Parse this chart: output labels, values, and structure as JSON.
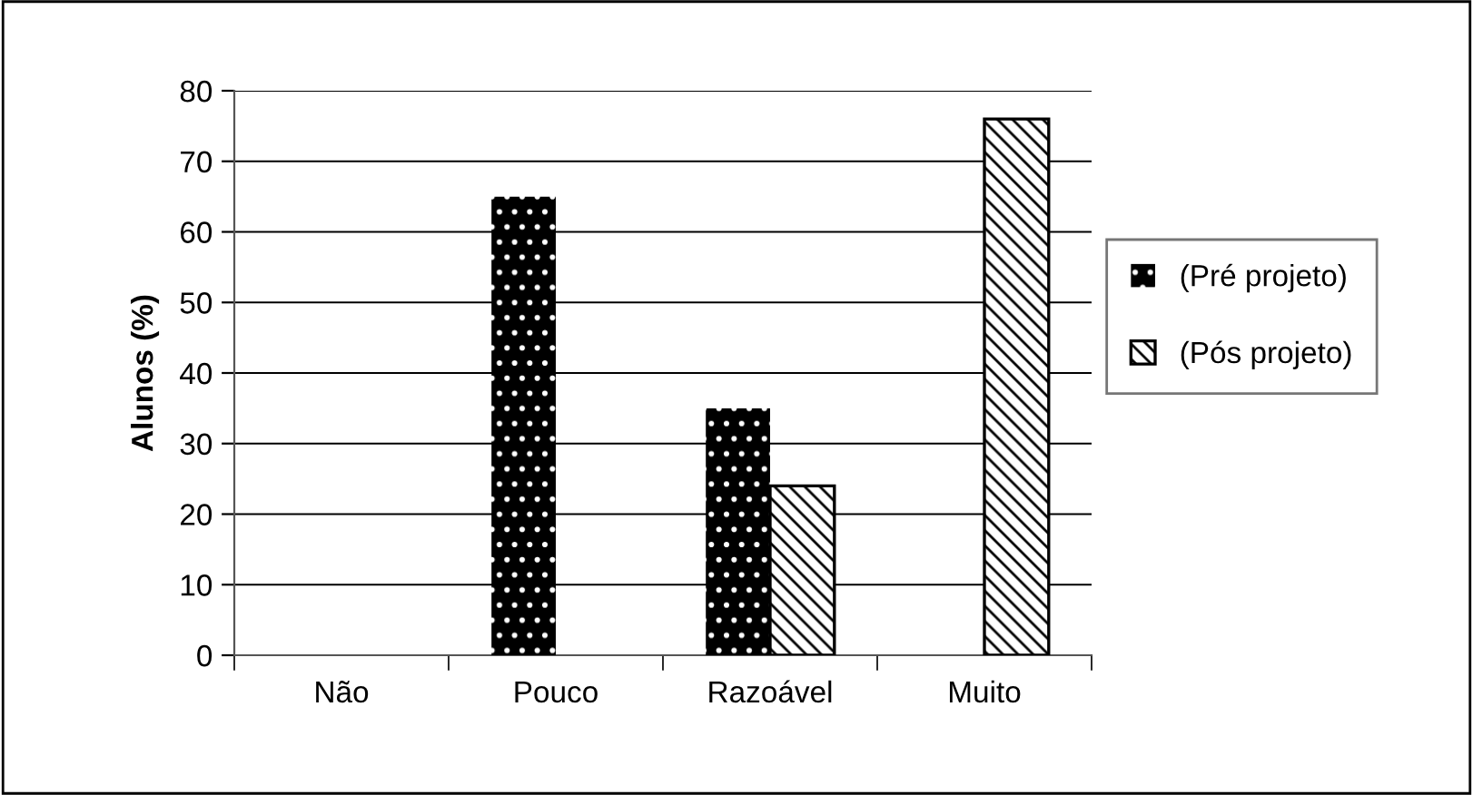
{
  "chart_data": {
    "type": "bar",
    "ylabel": "Alunos (%)",
    "categories": [
      "Não",
      "Pouco",
      "Razoável",
      "Muito"
    ],
    "series": [
      {
        "name": "(Pré projeto)",
        "color": "#000000",
        "values": [
          null,
          65,
          35,
          null
        ]
      },
      {
        "name": "(Pós projeto)",
        "color": "#000000",
        "values": [
          null,
          null,
          24,
          76
        ]
      }
    ],
    "ylim": [
      0,
      80
    ],
    "yticks": [
      0,
      10,
      20,
      30,
      40,
      50,
      60,
      70,
      80
    ],
    "grid": "y",
    "legend": "right"
  }
}
